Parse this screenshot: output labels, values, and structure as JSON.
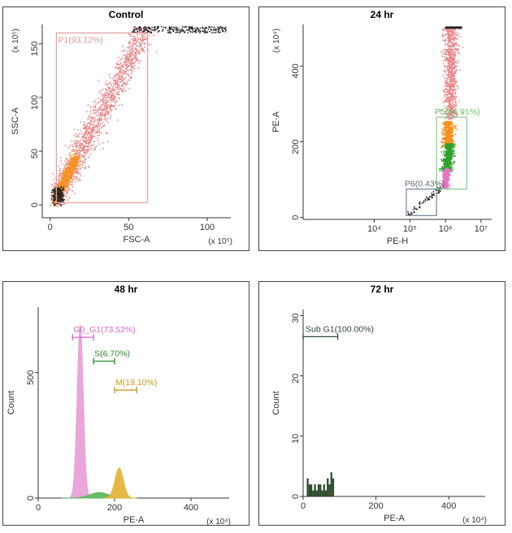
{
  "colors": {
    "frame": "#444444",
    "dots_red": "#e8888a",
    "dots_orange": "#f7931e",
    "dots_green": "#2ca02c",
    "dots_magenta": "#e377c2",
    "dots_black": "#222222",
    "gate_p1": "#e2a3a5",
    "gate_p5": "#8fd18f",
    "gate_p6": "#7a8aa0",
    "hist_pink": "#e8a1d6",
    "hist_green": "#5cb85c",
    "hist_gold": "#e6b53a",
    "hist_dark": "#2d4a2d",
    "label_pink": "#d966c9",
    "label_green": "#2e8b2e",
    "label_gold": "#c49a1a",
    "label_dark": "#2d4a2d",
    "label_p1": "#e29596",
    "label_p5": "#66c266",
    "label_p6": "#5f6b7a"
  },
  "chart_data": [
    {
      "id": "control",
      "type": "scatter",
      "title": "Control",
      "xlabel": "FSC-A",
      "ylabel": "SSC-A",
      "x_exp": "(x 10⁵)",
      "y_exp": "(x 10⁵)",
      "xlim": [
        -5,
        115
      ],
      "ylim": [
        -12,
        168
      ],
      "xticks": [
        0,
        50,
        100
      ],
      "yticks": [
        0,
        50,
        100,
        150
      ],
      "gates": [
        {
          "name": "P1",
          "label": "P1(93.12%)",
          "x": [
            4,
            62
          ],
          "y": [
            2,
            160
          ],
          "color_key": "gate_p1",
          "label_color_key": "label_p1"
        }
      ]
    },
    {
      "id": "t24",
      "type": "scatter",
      "title": "24 hr",
      "xlabel": "PE-H",
      "ylabel": "PE-A",
      "y_exp": "(x 10⁴)",
      "xscale": "log",
      "xlim": [
        2,
        7.3
      ],
      "ylim": [
        -5,
        510
      ],
      "xticks": [
        4,
        5,
        6,
        7
      ],
      "xtick_labels": [
        "10⁴",
        "10⁵",
        "10⁶",
        "10⁷"
      ],
      "yticks": [
        0,
        200,
        400
      ],
      "gates": [
        {
          "name": "P5",
          "label": "P5(66.91%)",
          "x": [
            5.75,
            6.6
          ],
          "y": [
            75,
            265
          ],
          "color_key": "gate_p5",
          "label_color_key": "label_p5"
        },
        {
          "name": "P6",
          "label": "P6(0.43%)",
          "x": [
            4.9,
            5.75
          ],
          "y": [
            5,
            75
          ],
          "color_key": "gate_p6",
          "label_color_key": "label_p6"
        }
      ]
    },
    {
      "id": "t48",
      "type": "area",
      "title": "48 hr",
      "xlabel": "PE-A",
      "ylabel": "Count",
      "x_exp": "(x 10⁴)",
      "xlim": [
        0,
        500
      ],
      "ylim": [
        0,
        760
      ],
      "xticks": [
        0,
        200,
        400
      ],
      "yticks": [
        0,
        500
      ],
      "peaks": [
        {
          "name": "G0_G1",
          "center": 110,
          "sigma": 8,
          "height": 690,
          "color_key": "hist_pink"
        },
        {
          "name": "S",
          "center": 160,
          "sigma": 25,
          "height": 22,
          "color_key": "hist_green"
        },
        {
          "name": "M",
          "center": 212,
          "sigma": 11,
          "height": 120,
          "color_key": "hist_gold"
        }
      ],
      "markers": [
        {
          "label": "G0_G1(73.52%)",
          "x1": 90,
          "x2": 145,
          "y": 640,
          "color_key": "label_pink"
        },
        {
          "label": "S(6.70%)",
          "x1": 145,
          "x2": 200,
          "y": 545,
          "color_key": "label_green"
        },
        {
          "label": "M(19.10%)",
          "x1": 200,
          "x2": 258,
          "y": 430,
          "color_key": "label_gold"
        }
      ]
    },
    {
      "id": "t72",
      "type": "bar",
      "title": "72 hr",
      "xlabel": "PE-A",
      "ylabel": "Count",
      "x_exp": "(x 10⁴)",
      "xlim": [
        0,
        500
      ],
      "ylim": [
        0,
        31
      ],
      "xticks": [
        0,
        200,
        400
      ],
      "yticks": [
        0,
        10,
        20,
        30
      ],
      "bins_x": [
        10,
        15,
        20,
        25,
        30,
        35,
        40,
        45,
        50,
        55,
        60,
        65,
        70,
        75,
        80
      ],
      "counts": [
        3,
        2,
        2,
        1,
        2,
        1,
        2,
        2,
        1,
        2,
        1,
        3,
        2,
        4,
        3
      ],
      "markers": [
        {
          "label": "Sub G1(100.00%)",
          "x1": 0,
          "x2": 95,
          "y": 26.5,
          "color_key": "label_dark"
        }
      ]
    }
  ]
}
